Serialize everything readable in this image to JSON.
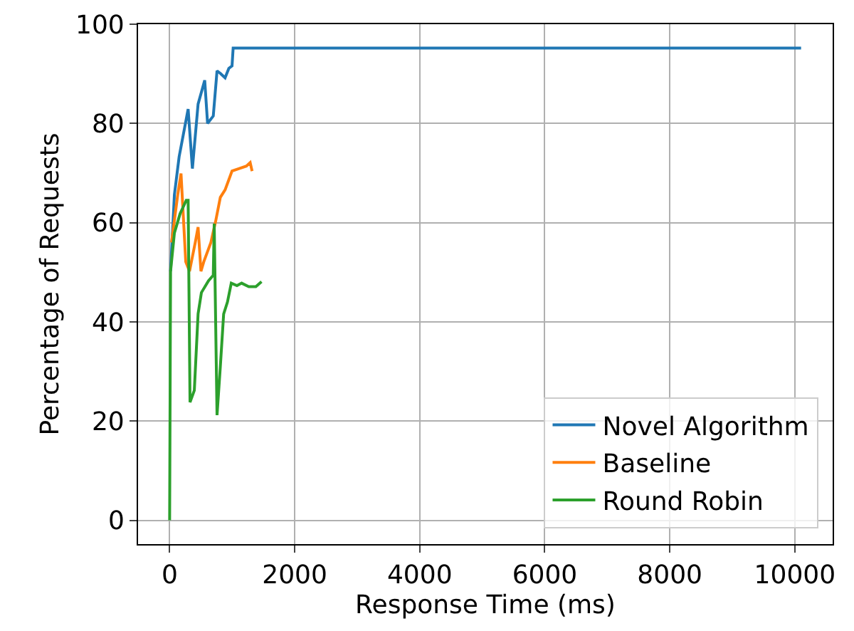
{
  "chart_data": {
    "type": "line",
    "xlabel": "Response Time (ms)",
    "ylabel": "Percentage of Requests",
    "xlim": [
      -505,
      10605
    ],
    "ylim": [
      -4.8,
      100
    ],
    "xticks": [
      0,
      2000,
      4000,
      6000,
      8000,
      10000
    ],
    "yticks": [
      0,
      20,
      40,
      60,
      80,
      100
    ],
    "grid": true,
    "legend": "bottom right",
    "line_style": "solid",
    "marker": "none",
    "series": [
      {
        "name": "Novel Algorithm",
        "color": "#1f77b4",
        "x": [
          15,
          76,
          152,
          296,
          364,
          455,
          561,
          607,
          698,
          758,
          811,
          887,
          947,
          998,
          1016,
          10100
        ],
        "values": [
          50.2,
          65.6,
          73.3,
          82.9,
          70.9,
          83.9,
          88.7,
          80.0,
          81.5,
          90.6,
          90.1,
          89.2,
          91.1,
          91.6,
          95.2,
          95.2
        ]
      },
      {
        "name": "Baseline",
        "color": "#ff7f0e",
        "x": [
          30,
          129,
          182,
          258,
          318,
          410,
          455,
          501,
          546,
          660,
          736,
          811,
          887,
          998,
          1114,
          1228,
          1288,
          1319
        ],
        "values": [
          56.0,
          65.6,
          69.9,
          52.1,
          50.2,
          56.0,
          59.1,
          50.2,
          52.1,
          56.0,
          60.3,
          65.1,
          66.6,
          70.4,
          70.9,
          71.4,
          72.1,
          70.4
        ]
      },
      {
        "name": "Round Robin",
        "color": "#2ca02c",
        "x": [
          0,
          15,
          76,
          167,
          266,
          296,
          326,
          395,
          455,
          508,
          622,
          698,
          713,
          758,
          811,
          864,
          925,
          986,
          1077,
          1152,
          1266,
          1379,
          1470
        ],
        "values": [
          0,
          50.2,
          57.9,
          61.8,
          64.5,
          64.5,
          23.8,
          26.2,
          41.6,
          45.9,
          48.3,
          49.4,
          59.8,
          21.2,
          31.0,
          41.6,
          44.0,
          47.8,
          47.3,
          47.8,
          47.1,
          47.1,
          48.1
        ]
      }
    ]
  }
}
